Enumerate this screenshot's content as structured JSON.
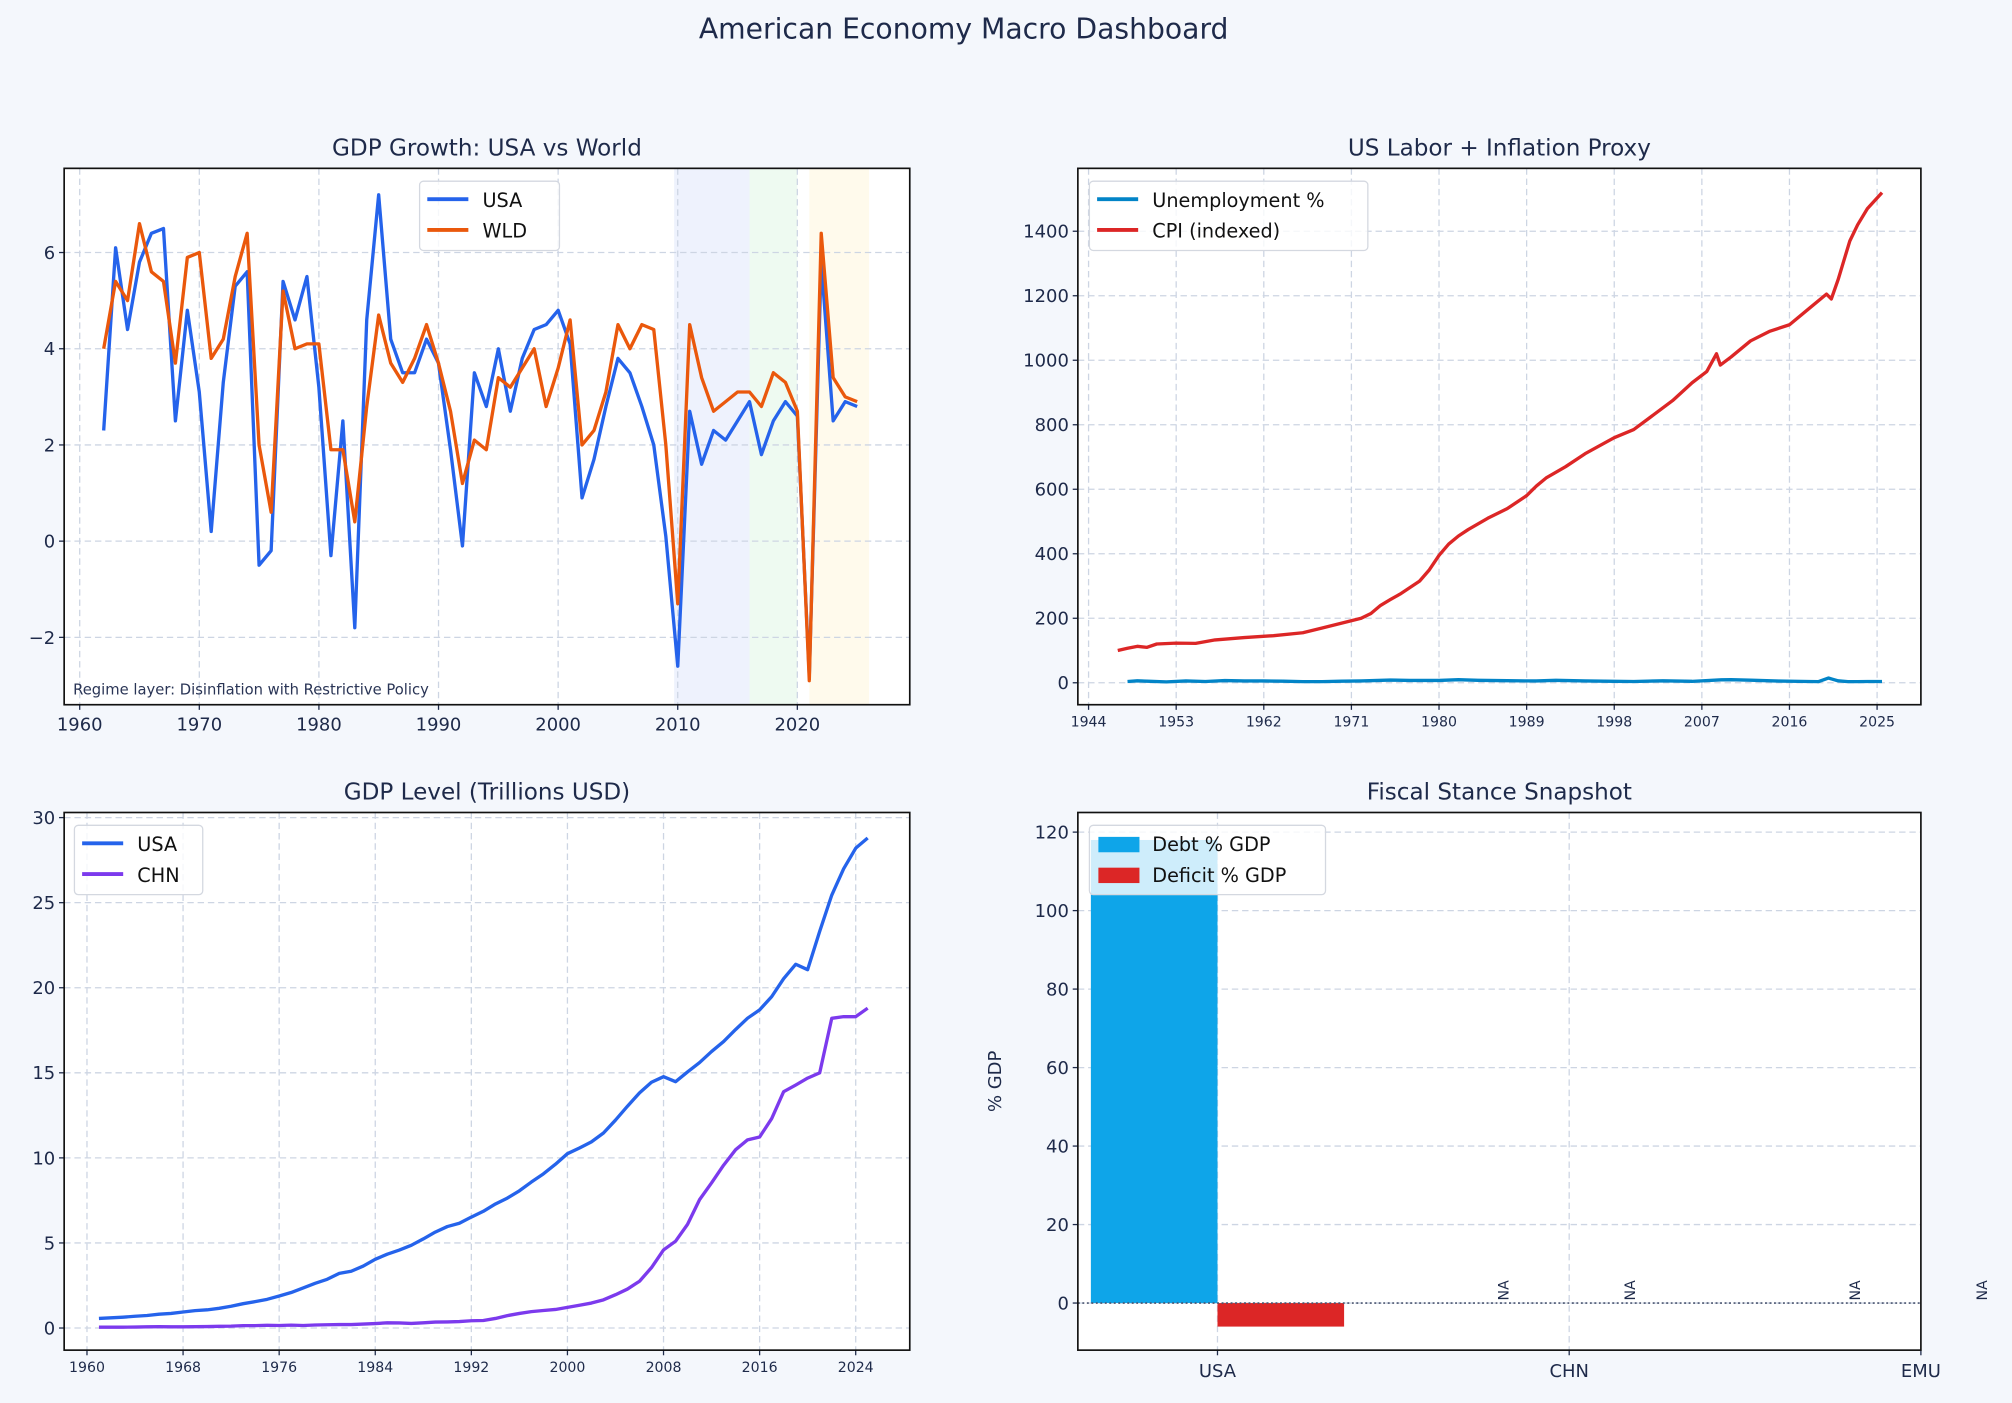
{
  "title": "American Economy Macro Dashboard",
  "colors": {
    "background": "#f4f7fc",
    "text": "#1e2a4a",
    "usa": "#2563eb",
    "wld": "#ea580c",
    "unemployment": "#0284c7",
    "cpi": "#dc2626",
    "chn": "#7c3aed",
    "debt": "#0ea5e9",
    "deficit": "#dc2626"
  },
  "chart_data": [
    {
      "type": "line",
      "title": "GDP Growth: USA vs World",
      "xlabel": "",
      "ylabel": "",
      "xlim": [
        1958.7,
        2029.4
      ],
      "ylim": [
        -3.4,
        7.75
      ],
      "xticks": [
        1960,
        1970,
        1980,
        1990,
        2000,
        2010,
        2020
      ],
      "yticks": [
        -2,
        0,
        2,
        4,
        6
      ],
      "ytick_labels": [
        "−2",
        "0",
        "2",
        "4",
        "6"
      ],
      "grid": true,
      "legend": "top-center",
      "annotation": "Regime layer: Disinflation with Restrictive Policy",
      "regime_bands": [
        {
          "from": 2009.7,
          "to": 2016,
          "color": "#eef2fd"
        },
        {
          "from": 2016,
          "to": 2020,
          "color": "#eefaf1"
        },
        {
          "from": 2021,
          "to": 2026,
          "color": "#fffaec"
        }
      ],
      "x": [
        1962,
        1963,
        1964,
        1965,
        1966,
        1967,
        1968,
        1969,
        1970,
        1971,
        1972,
        1973,
        1974,
        1975,
        1976,
        1977,
        1978,
        1979,
        1980,
        1981,
        1982,
        1983,
        1984,
        1985,
        1986,
        1987,
        1988,
        1989,
        1990,
        1991,
        1992,
        1993,
        1994,
        1995,
        1996,
        1997,
        1998,
        1999,
        2000,
        2001,
        2002,
        2003,
        2004,
        2005,
        2006,
        2007,
        2008,
        2009,
        2010,
        2011,
        2012,
        2013,
        2014,
        2015,
        2016,
        2017,
        2018,
        2019,
        2020,
        2021,
        2022,
        2023,
        2024,
        2025
      ],
      "series": [
        {
          "name": "USA",
          "color": "#2563eb",
          "values": [
            2.3,
            6.1,
            4.4,
            5.8,
            6.4,
            6.5,
            2.5,
            4.8,
            3.1,
            0.2,
            3.3,
            5.3,
            5.6,
            -0.5,
            -0.2,
            5.4,
            4.6,
            5.5,
            3.2,
            -0.3,
            2.5,
            -1.8,
            4.6,
            7.2,
            4.2,
            3.5,
            3.5,
            4.2,
            3.7,
            1.9,
            -0.1,
            3.5,
            2.8,
            4.0,
            2.7,
            3.8,
            4.4,
            4.5,
            4.8,
            4.1,
            0.9,
            1.7,
            2.8,
            3.8,
            3.5,
            2.8,
            2.0,
            0.1,
            -2.6,
            2.7,
            1.6,
            2.3,
            2.1,
            2.5,
            2.9,
            1.8,
            2.5,
            2.9,
            2.6,
            -2.8,
            5.8,
            2.5,
            2.9,
            2.8
          ]
        },
        {
          "name": "WLD",
          "color": "#ea580c",
          "values": [
            4.0,
            5.4,
            5.0,
            6.6,
            5.6,
            5.4,
            3.7,
            5.9,
            6.0,
            3.8,
            4.2,
            5.5,
            6.4,
            2.0,
            0.6,
            5.2,
            4.0,
            4.1,
            4.1,
            1.9,
            1.9,
            0.4,
            2.8,
            4.7,
            3.7,
            3.3,
            3.8,
            4.5,
            3.7,
            2.7,
            1.2,
            2.1,
            1.9,
            3.4,
            3.2,
            3.6,
            4.0,
            2.8,
            3.6,
            4.6,
            2.0,
            2.3,
            3.1,
            4.5,
            4.0,
            4.5,
            4.4,
            2.0,
            -1.3,
            4.5,
            3.4,
            2.7,
            2.9,
            3.1,
            3.1,
            2.8,
            3.5,
            3.3,
            2.7,
            -2.9,
            6.4,
            3.4,
            3.0,
            2.9
          ]
        }
      ]
    },
    {
      "type": "line",
      "title": "US Labor + Inflation Proxy",
      "xlabel": "",
      "ylabel": "",
      "xlim": [
        1942.9,
        2029.5
      ],
      "ylim": [
        -68,
        1595
      ],
      "xticks": [
        1944,
        1953,
        1962,
        1971,
        1980,
        1989,
        1998,
        2007,
        2016,
        2025
      ],
      "yticks": [
        0,
        200,
        400,
        600,
        800,
        1000,
        1200,
        1400
      ],
      "grid": true,
      "legend": "top-left",
      "series": [
        {
          "name": "Unemployment %",
          "color": "#0284c7",
          "x": [
            1948,
            1949,
            1950,
            1952,
            1954,
            1956,
            1958,
            1960,
            1962,
            1964,
            1966,
            1968,
            1970,
            1972,
            1975,
            1977,
            1980,
            1982,
            1984,
            1987,
            1990,
            1992,
            1995,
            1998,
            2000,
            2003,
            2006,
            2009,
            2010,
            2012,
            2015,
            2018,
            2019,
            2020,
            2020.4,
            2021,
            2022,
            2023,
            2024,
            2025.5
          ],
          "values": [
            4,
            6,
            5,
            3,
            5.5,
            4,
            6.8,
            5.5,
            5.5,
            5,
            3.8,
            3.6,
            4.9,
            5.6,
            8.5,
            7,
            7.2,
            9.7,
            7.5,
            6.2,
            5.6,
            7.5,
            5.6,
            4.5,
            4,
            6,
            4.6,
            9.3,
            9.6,
            8.1,
            5.3,
            3.9,
            3.7,
            14.7,
            11,
            6,
            3.6,
            3.6,
            4,
            4.2
          ]
        },
        {
          "name": "CPI (indexed)",
          "color": "#dc2626",
          "x": [
            1947,
            1948,
            1949,
            1950,
            1951,
            1953,
            1955,
            1957,
            1960,
            1963,
            1966,
            1968,
            1970,
            1972,
            1973,
            1974,
            1975,
            1976,
            1978,
            1979,
            1980,
            1981,
            1982,
            1983,
            1985,
            1987,
            1989,
            1990,
            1991,
            1993,
            1995,
            1998,
            2000,
            2002,
            2004,
            2006,
            2007.5,
            2008.5,
            2008.9,
            2010,
            2012,
            2014,
            2016,
            2018,
            2019.8,
            2020.3,
            2021,
            2021.5,
            2022.2,
            2023,
            2024,
            2025.5
          ],
          "values": [
            100,
            107,
            113,
            110,
            120,
            123,
            122,
            133,
            140,
            146,
            155,
            170,
            185,
            200,
            215,
            240,
            258,
            275,
            315,
            350,
            395,
            430,
            455,
            475,
            510,
            540,
            580,
            610,
            635,
            670,
            710,
            760,
            785,
            830,
            875,
            930,
            965,
            1020,
            985,
            1010,
            1060,
            1090,
            1110,
            1160,
            1205,
            1190,
            1250,
            1300,
            1370,
            1420,
            1470,
            1520
          ]
        }
      ]
    },
    {
      "type": "line",
      "title": "GDP Level (Trillions USD)",
      "xlabel": "",
      "ylabel": "",
      "xlim": [
        1958.1,
        2028.5
      ],
      "ylim": [
        -1.3,
        30.3
      ],
      "xticks": [
        1960,
        1968,
        1976,
        1984,
        1992,
        2000,
        2008,
        2016,
        2024
      ],
      "yticks": [
        0,
        5,
        10,
        15,
        20,
        25,
        30
      ],
      "grid": true,
      "legend": "top-left",
      "x": [
        1961,
        1962,
        1963,
        1964,
        1965,
        1966,
        1967,
        1968,
        1969,
        1970,
        1971,
        1972,
        1973,
        1974,
        1975,
        1976,
        1977,
        1978,
        1979,
        1980,
        1981,
        1982,
        1983,
        1984,
        1985,
        1986,
        1987,
        1988,
        1989,
        1990,
        1991,
        1992,
        1993,
        1994,
        1995,
        1996,
        1997,
        1998,
        1999,
        2000,
        2001,
        2002,
        2003,
        2004,
        2005,
        2006,
        2007,
        2008,
        2009,
        2010,
        2011,
        2012,
        2013,
        2014,
        2015,
        2016,
        2017,
        2018,
        2019,
        2020,
        2021,
        2022,
        2023,
        2024,
        2025
      ],
      "series": [
        {
          "name": "USA",
          "color": "#2563eb",
          "values": [
            0.56,
            0.6,
            0.64,
            0.69,
            0.74,
            0.81,
            0.86,
            0.94,
            1.02,
            1.07,
            1.16,
            1.28,
            1.43,
            1.55,
            1.69,
            1.88,
            2.09,
            2.36,
            2.63,
            2.86,
            3.21,
            3.34,
            3.64,
            4.04,
            4.34,
            4.58,
            4.86,
            5.24,
            5.64,
            5.96,
            6.16,
            6.52,
            6.86,
            7.29,
            7.64,
            8.07,
            8.58,
            9.06,
            9.63,
            10.25,
            10.58,
            10.94,
            11.46,
            12.22,
            13.04,
            13.82,
            14.45,
            14.77,
            14.48,
            15.05,
            15.6,
            16.25,
            16.84,
            17.55,
            18.21,
            18.7,
            19.48,
            20.53,
            21.38,
            21.06,
            23.32,
            25.44,
            27.0,
            28.2,
            28.8
          ]
        },
        {
          "name": "CHN",
          "color": "#7c3aed",
          "values": [
            0.05,
            0.05,
            0.05,
            0.06,
            0.07,
            0.08,
            0.07,
            0.07,
            0.08,
            0.09,
            0.1,
            0.11,
            0.14,
            0.14,
            0.16,
            0.15,
            0.17,
            0.15,
            0.18,
            0.19,
            0.2,
            0.2,
            0.23,
            0.26,
            0.31,
            0.3,
            0.27,
            0.31,
            0.35,
            0.36,
            0.38,
            0.43,
            0.44,
            0.56,
            0.73,
            0.86,
            0.96,
            1.03,
            1.09,
            1.21,
            1.34,
            1.47,
            1.66,
            1.96,
            2.29,
            2.75,
            3.55,
            4.59,
            5.1,
            6.09,
            7.55,
            8.53,
            9.57,
            10.48,
            11.06,
            11.23,
            12.31,
            13.89,
            14.28,
            14.69,
            15.0,
            18.2,
            18.3,
            18.3,
            18.8
          ]
        }
      ]
    },
    {
      "type": "bar",
      "title": "Fiscal Stance Snapshot",
      "xlabel": "",
      "ylabel": "% GDP",
      "ylim": [
        -12,
        125
      ],
      "yticks": [
        0,
        20,
        40,
        60,
        80,
        100,
        120
      ],
      "categories": [
        "USA",
        "CHN",
        "EMU"
      ],
      "grid": true,
      "legend": "top-left",
      "missing_label": "NA",
      "series": [
        {
          "name": "Debt % GDP",
          "color": "#0ea5e9",
          "values": [
            118,
            null,
            null
          ]
        },
        {
          "name": "Deficit % GDP",
          "color": "#dc2626",
          "values": [
            -6,
            null,
            null
          ]
        }
      ]
    }
  ]
}
